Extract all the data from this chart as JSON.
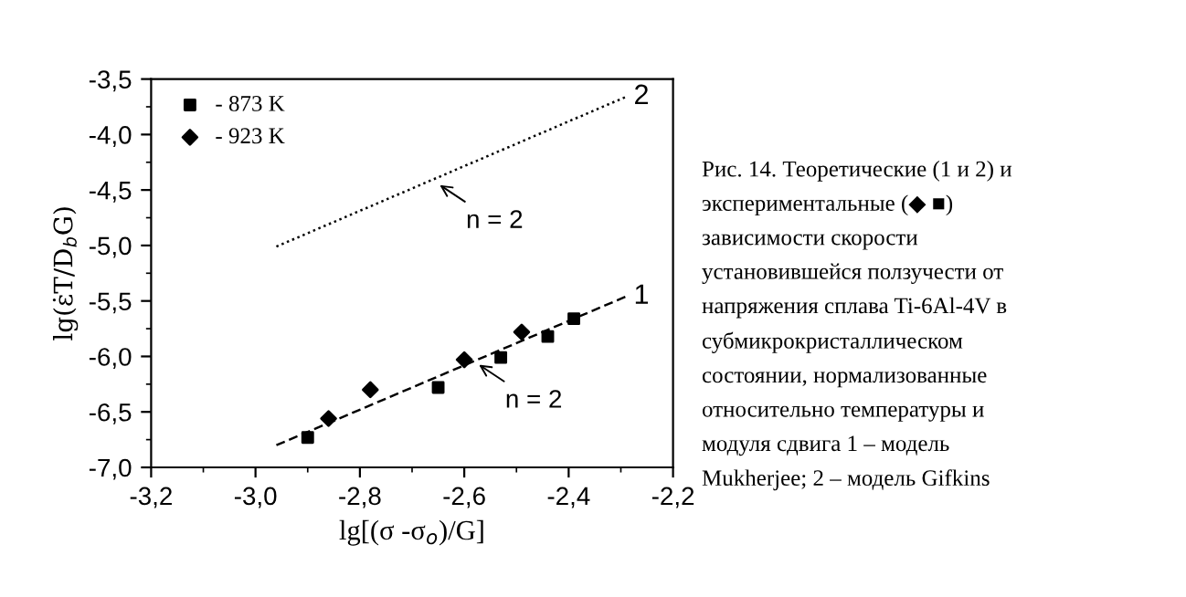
{
  "chart_data": {
    "type": "scatter",
    "xlabel": "lg[(σ -σ$_{o}$)/G]",
    "ylabel": "lg(ε̇T/D$_{b}$G)",
    "xlim": [
      -3.2,
      -2.2
    ],
    "ylim": [
      -7.0,
      -3.5
    ],
    "xticks": [
      {
        "value": -3.2,
        "label": "-3,2"
      },
      {
        "value": -3.0,
        "label": "-3,0"
      },
      {
        "value": -2.8,
        "label": "-2,8"
      },
      {
        "value": -2.6,
        "label": "-2,6"
      },
      {
        "value": -2.4,
        "label": "-2,4"
      },
      {
        "value": -2.2,
        "label": "-2,2"
      }
    ],
    "yticks": [
      {
        "value": -7.0,
        "label": "-7,0"
      },
      {
        "value": -6.5,
        "label": "-6,5"
      },
      {
        "value": -6.0,
        "label": "-6,0"
      },
      {
        "value": -5.5,
        "label": "-5,5"
      },
      {
        "value": -5.0,
        "label": "-5,0"
      },
      {
        "value": -4.5,
        "label": "-4,5"
      },
      {
        "value": -4.0,
        "label": "-4,0"
      },
      {
        "value": -3.5,
        "label": "-3,5"
      }
    ],
    "grid": false,
    "legend": "top left",
    "series": [
      {
        "name": "- 873 K",
        "marker": "square",
        "color": "#000000",
        "x": [
          -2.9,
          -2.65,
          -2.53,
          -2.44,
          -2.39
        ],
        "values": [
          -6.73,
          -6.28,
          -6.01,
          -5.82,
          -5.66
        ]
      },
      {
        "name": "- 923 K",
        "marker": "diamond",
        "color": "#000000",
        "x": [
          -2.86,
          -2.78,
          -2.6,
          -2.49
        ],
        "values": [
          -6.56,
          -6.3,
          -6.03,
          -5.78
        ]
      },
      {
        "type": "line",
        "line_style": "dashed",
        "color": "#000000",
        "x": [
          -2.96,
          -2.29
        ],
        "values": [
          -6.8,
          -5.46
        ]
      },
      {
        "type": "line",
        "line_style": "dotted",
        "color": "#000000",
        "x": [
          -2.96,
          -2.29
        ],
        "values": [
          -5.01,
          -3.66
        ]
      }
    ],
    "annotations": [
      {
        "text": "1",
        "x": -2.29,
        "y": -5.46
      },
      {
        "text": "2",
        "x": -2.29,
        "y": -3.66
      },
      {
        "text": "n = 2",
        "x": -2.655,
        "y": -4.43
      },
      {
        "text": "n = 2",
        "x": -2.58,
        "y": -6.05
      },
      "Рис. 14. Теоретические (1 и 2) и\nэкспериментальные (◆ ■)\nзависимости скорости\nустановившейся ползучести от\nнапряжения сплава Ti-6Al-4V в\nсубмикрокристаллическом\nсостоянии, нормализованные\nотносительно температуры и\nмодуля сдвига 1 – модель\nMukherjee; 2 – модель Gifkins"
    ]
  }
}
